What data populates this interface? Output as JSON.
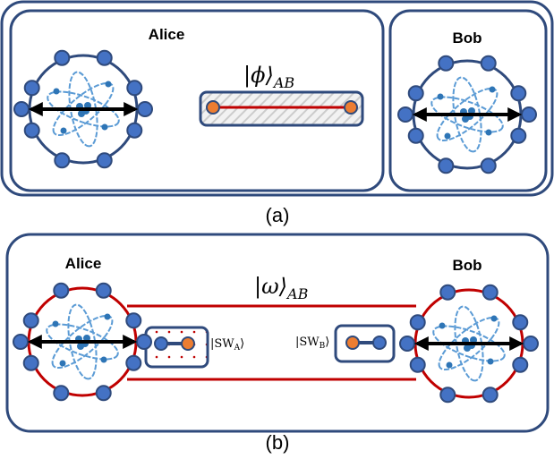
{
  "panel_a": {
    "alice": "Alice",
    "bob": "Bob",
    "state": {
      "main": "|ϕ⟩",
      "subscript": "AB"
    },
    "caption": "(a)"
  },
  "panel_b": {
    "alice": "Alice",
    "bob": "Bob",
    "state": {
      "main": "|ω⟩",
      "subscript": "AB"
    },
    "swap_a": {
      "prefix": "|SW",
      "subscript": "A",
      "suffix": "⟩"
    },
    "swap_b": {
      "prefix": "|SW",
      "subscript": "B",
      "suffix": "⟩"
    },
    "caption": "(b)"
  }
}
